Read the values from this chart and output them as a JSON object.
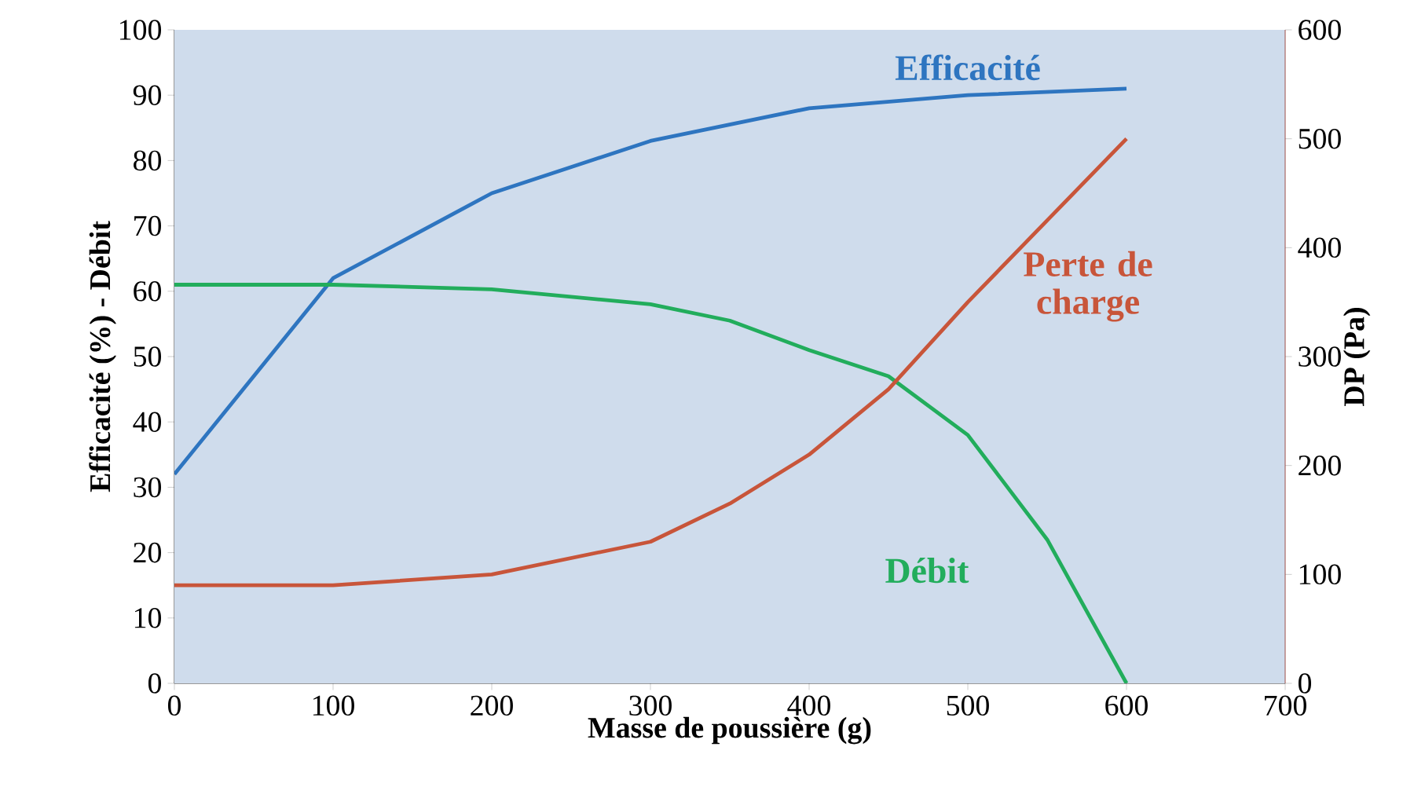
{
  "chart_data": {
    "type": "line",
    "xlabel": "Masse de poussière (g)",
    "ylabel": "Efficacité (%) - Débit",
    "y2label": "DP (Pa)",
    "xlim": [
      0,
      700
    ],
    "xticks": [
      0,
      100,
      200,
      300,
      400,
      500,
      600,
      700
    ],
    "ylim": [
      0,
      100
    ],
    "yticks": [
      0,
      10,
      20,
      30,
      40,
      50,
      60,
      70,
      80,
      90,
      100
    ],
    "y2lim": [
      0,
      600
    ],
    "y2ticks": [
      0,
      100,
      200,
      300,
      400,
      500,
      600
    ],
    "grid": false,
    "legend": false,
    "marker": "none",
    "line_style": "solid",
    "series": [
      {
        "name": "Efficacité",
        "color": "#2e75c0",
        "x": [
          0,
          100,
          200,
          300,
          400,
          500,
          600
        ],
        "values": [
          32,
          62,
          75,
          83,
          88,
          90,
          91
        ]
      },
      {
        "name": "Perte de charge",
        "color": "#c8553a",
        "axis": "y2",
        "x": [
          0,
          100,
          200,
          300,
          350,
          400,
          450,
          500,
          550,
          600
        ],
        "values": [
          90,
          90,
          100,
          130,
          165,
          210,
          270,
          350,
          425,
          500
        ]
      },
      {
        "name": "Débit",
        "color": "#22ad5c",
        "x": [
          0,
          100,
          200,
          300,
          350,
          400,
          450,
          500,
          550,
          600
        ],
        "values": [
          61,
          61,
          60.3,
          58,
          55.5,
          51,
          47,
          38,
          22,
          0
        ]
      }
    ]
  }
}
